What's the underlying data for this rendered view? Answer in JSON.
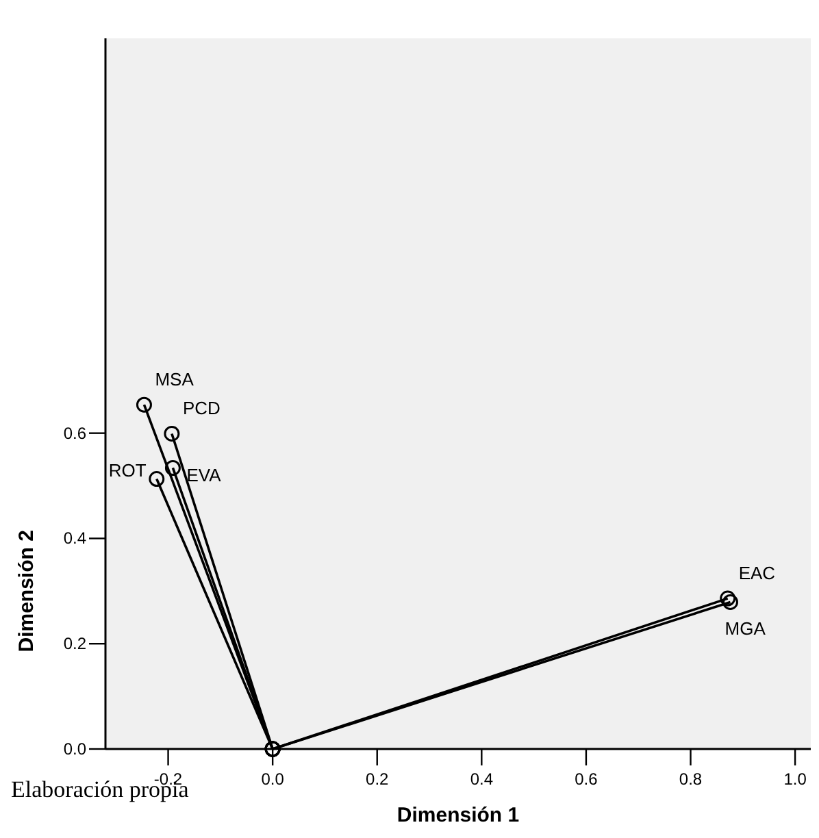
{
  "chart_data": {
    "type": "line",
    "xlabel": "Dimensión 1",
    "ylabel": "Dimensión 2",
    "xlim": [
      -0.32,
      1.03
    ],
    "ylim": [
      0,
      1.35
    ],
    "xticks": [
      -0.2,
      {
        "value": 0,
        "label": "0.0"
      },
      0.2,
      0.4,
      0.6,
      0.8,
      {
        "value": 1,
        "label": "1.0"
      }
    ],
    "yticks": [
      {
        "value": 0,
        "label": "0.0"
      },
      0.2,
      0.4,
      0.6
    ],
    "grid": false,
    "marker": "circle",
    "line_style": "solid",
    "annotations": [
      "Elaboración propia"
    ],
    "series": [
      {
        "name": "MSA",
        "color": "#000000",
        "x": [
          0,
          -0.246
        ],
        "values": [
          0,
          0.654
        ]
      },
      {
        "name": "PCD",
        "color": "#000000",
        "x": [
          0,
          -0.193
        ],
        "values": [
          0,
          0.599
        ]
      },
      {
        "name": "ROT",
        "color": "#000000",
        "x": [
          0,
          -0.222
        ],
        "values": [
          0,
          0.513
        ]
      },
      {
        "name": "EVA",
        "color": "#000000",
        "x": [
          0,
          -0.191
        ],
        "values": [
          0,
          0.534
        ]
      },
      {
        "name": "EAC",
        "color": "#000000",
        "x": [
          0,
          0.871
        ],
        "values": [
          0,
          0.286
        ]
      },
      {
        "name": "MGA",
        "color": "#000000",
        "x": [
          0,
          0.876
        ],
        "values": [
          0,
          0.279
        ]
      }
    ]
  }
}
